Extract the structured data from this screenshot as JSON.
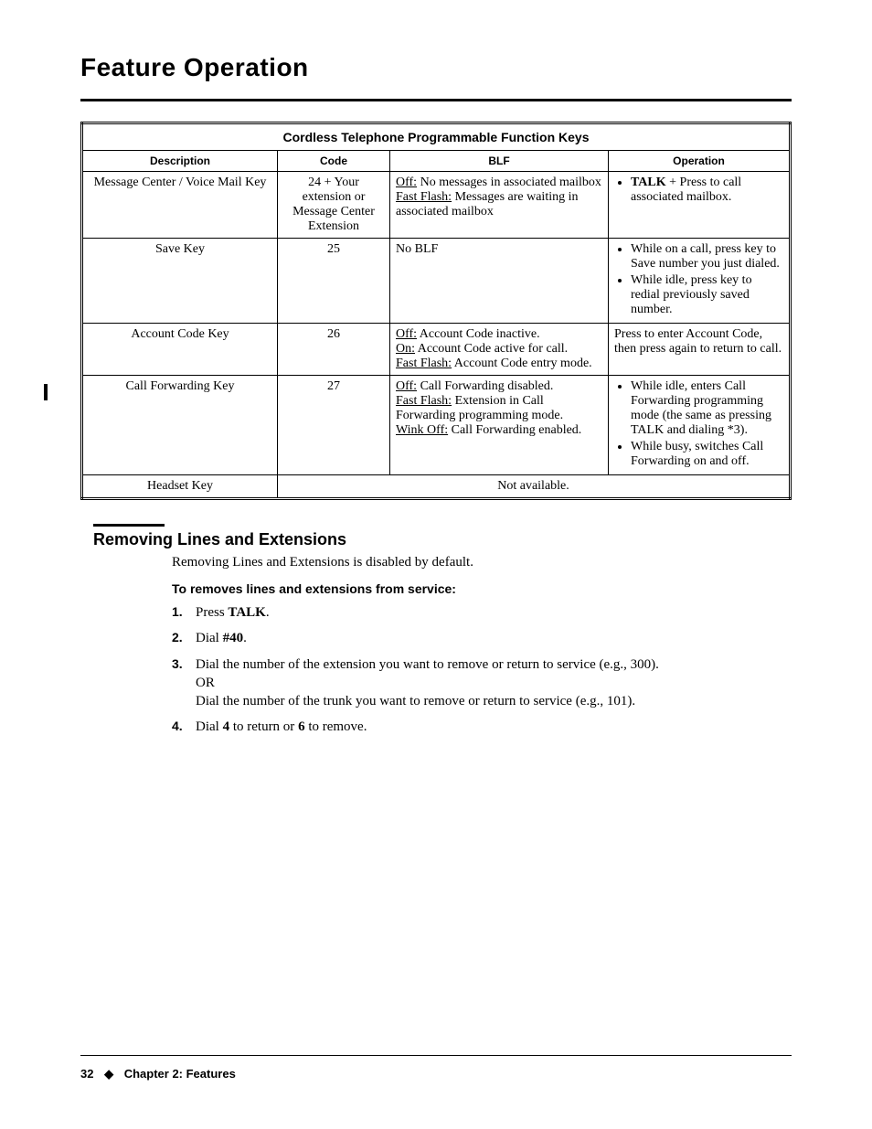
{
  "title": "Feature Operation",
  "table": {
    "caption": "Cordless Telephone Programmable Function Keys",
    "headers": [
      "Description",
      "Code",
      "BLF",
      "Operation"
    ],
    "rows": [
      {
        "desc": "Message Center / Voice Mail Key",
        "code": "24 + Your extension or Message Center Extension",
        "blf_html": "<span class='u'>Off:</span> No messages in associated mailbox<br><span class='u'>Fast Flash:</span> Messages are waiting in associated mailbox",
        "op_html": "<ul class='cell-list'><li><b>TALK</b> + Press to call associated mailbox.</li></ul>"
      },
      {
        "desc": "Save Key",
        "code": "25",
        "blf_html": "No BLF",
        "op_html": "<ul class='cell-list'><li>While on a call, press key to Save number you just dialed.</li><li>While idle, press key to redial previously saved number.</li></ul>"
      },
      {
        "desc": "Account Code Key",
        "code": "26",
        "blf_html": "<span class='u'>Off:</span> Account Code inactive.<br><span class='u'>On:</span> Account Code active for call.<br><span class='u'>Fast Flash:</span> Account Code entry mode.",
        "op_html": "Press to enter Account Code, then press again to return to call."
      },
      {
        "desc": "Call Forwarding Key",
        "code": "27",
        "blf_html": "<span class='u'>Off:</span> Call Forwarding disabled.<br><span class='u'>Fast Flash:</span> Extension in Call Forwarding programming mode.<br><span class='u'>Wink Off:</span> Call Forwarding enabled.",
        "op_html": "<ul class='cell-list'><li>While idle, enters Call Forwarding programming mode (the same as pressing TALK and dialing *3).</li><li>While busy, switches Call Forwarding on and off.</li></ul>"
      }
    ],
    "last_row": {
      "desc": "Headset Key",
      "na": "Not available."
    }
  },
  "section": {
    "heading": "Removing Lines and Extensions",
    "intro": "Removing Lines and Extensions is disabled by default.",
    "subhead": "To removes lines and extensions from service:",
    "steps": [
      "Press <b>TALK</b>.",
      "Dial <b>#40</b>.",
      "Dial the number of the extension you want to remove or return to service (e.g., 300).<br>OR<br>Dial the number of the trunk you want to remove or return to service (e.g., 101).",
      "Dial <b>4</b> to return or <b>6</b> to remove."
    ]
  },
  "footer": {
    "page": "32",
    "chapter": "Chapter 2: Features"
  }
}
